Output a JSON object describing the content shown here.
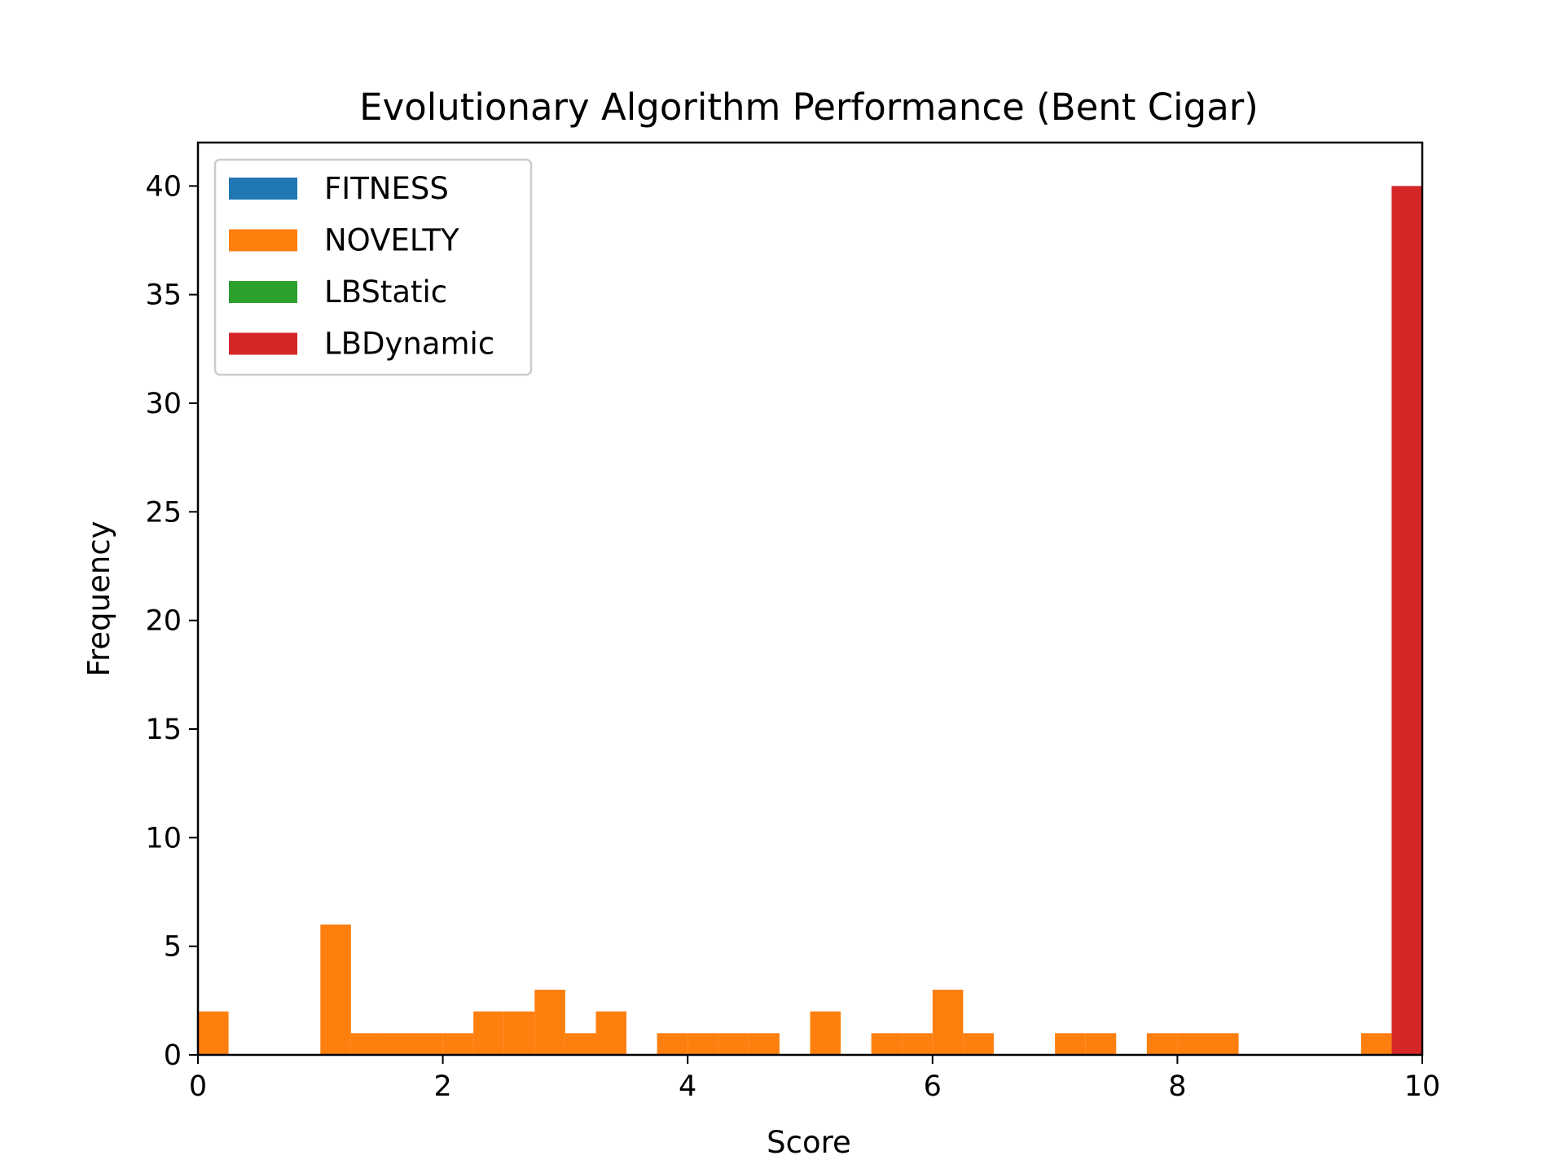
{
  "chart_data": {
    "type": "bar",
    "title": "Evolutionary Algorithm Performance (Bent Cigar)",
    "xlabel": "Score",
    "ylabel": "Frequency",
    "xlim": [
      0,
      10
    ],
    "ylim": [
      0,
      42
    ],
    "xticks": [
      0,
      2,
      4,
      6,
      8,
      10
    ],
    "yticks": [
      0,
      5,
      10,
      15,
      20,
      25,
      30,
      35,
      40
    ],
    "grid": false,
    "legend_position": "top-left",
    "bin_width": 0.25,
    "series": [
      {
        "name": "FITNESS",
        "color": "#1f77b4",
        "bins": []
      },
      {
        "name": "NOVELTY",
        "color": "#ff7f0e",
        "bins": [
          {
            "start": 0.0,
            "count": 2
          },
          {
            "start": 1.0,
            "count": 6
          },
          {
            "start": 1.25,
            "count": 1
          },
          {
            "start": 1.5,
            "count": 1
          },
          {
            "start": 1.75,
            "count": 1
          },
          {
            "start": 2.0,
            "count": 1
          },
          {
            "start": 2.25,
            "count": 2
          },
          {
            "start": 2.5,
            "count": 2
          },
          {
            "start": 2.75,
            "count": 3
          },
          {
            "start": 3.0,
            "count": 1
          },
          {
            "start": 3.25,
            "count": 2
          },
          {
            "start": 3.75,
            "count": 1
          },
          {
            "start": 4.0,
            "count": 1
          },
          {
            "start": 4.25,
            "count": 1
          },
          {
            "start": 4.5,
            "count": 1
          },
          {
            "start": 5.0,
            "count": 2
          },
          {
            "start": 5.5,
            "count": 1
          },
          {
            "start": 5.75,
            "count": 1
          },
          {
            "start": 6.0,
            "count": 3
          },
          {
            "start": 6.25,
            "count": 1
          },
          {
            "start": 7.0,
            "count": 1
          },
          {
            "start": 7.25,
            "count": 1
          },
          {
            "start": 7.75,
            "count": 1
          },
          {
            "start": 8.0,
            "count": 1
          },
          {
            "start": 8.25,
            "count": 1
          },
          {
            "start": 9.5,
            "count": 1
          }
        ]
      },
      {
        "name": "LBStatic",
        "color": "#2ca02c",
        "bins": []
      },
      {
        "name": "LBDynamic",
        "color": "#d62728",
        "bins": [
          {
            "start": 9.75,
            "count": 40
          }
        ]
      }
    ]
  }
}
